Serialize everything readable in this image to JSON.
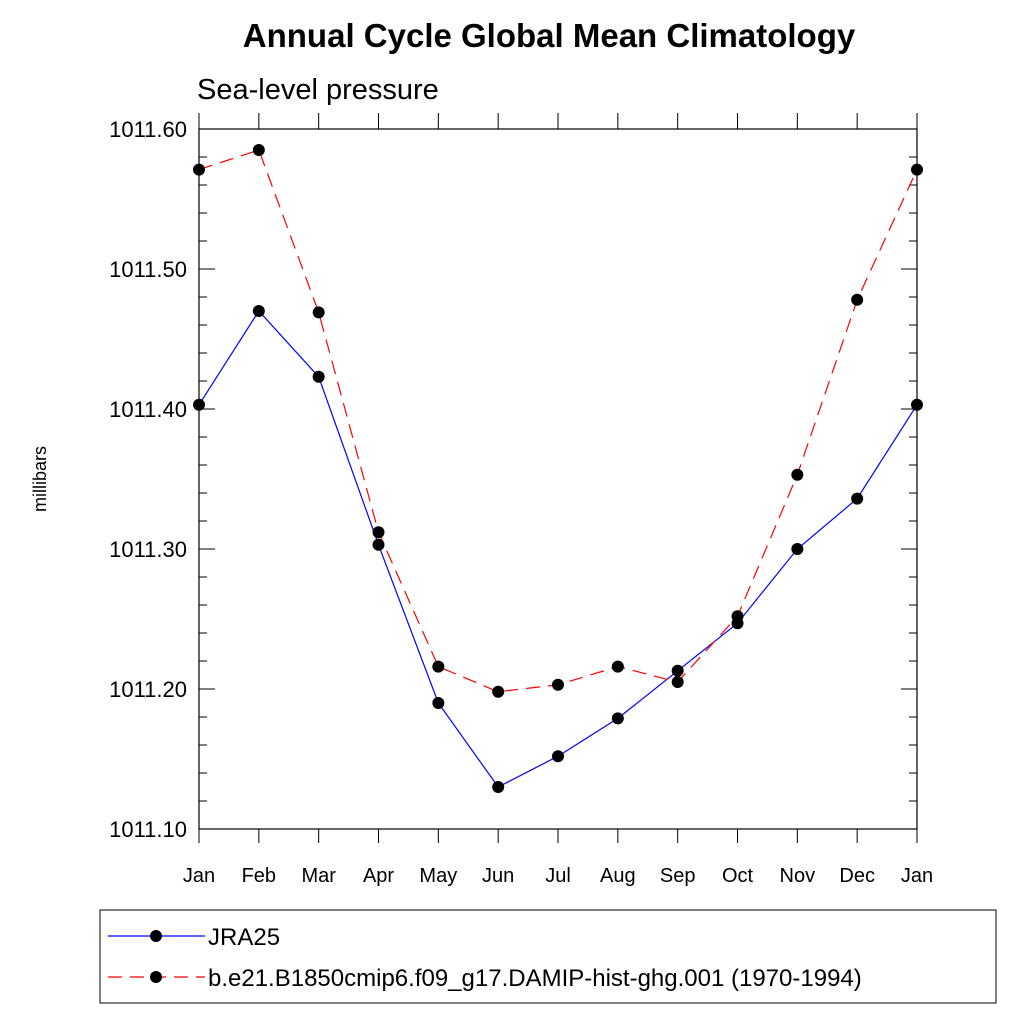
{
  "chart_data": {
    "type": "line",
    "title": "Annual Cycle Global Mean Climatology",
    "subtitle": "Sea-level pressure",
    "xlabel": "",
    "ylabel": "millibars",
    "categories": [
      "Jan",
      "Feb",
      "Mar",
      "Apr",
      "May",
      "Jun",
      "Jul",
      "Aug",
      "Sep",
      "Oct",
      "Nov",
      "Dec",
      "Jan"
    ],
    "ylim": [
      1011.1,
      1011.6
    ],
    "yticks": [
      1011.1,
      1011.2,
      1011.3,
      1011.4,
      1011.5,
      1011.6
    ],
    "ytick_labels": [
      "1011.10",
      "1011.20",
      "1011.30",
      "1011.40",
      "1011.50",
      "1011.60"
    ],
    "series": [
      {
        "name": "JRA25",
        "color": "#0000ff",
        "style": "solid",
        "values": [
          1011.403,
          1011.47,
          1011.423,
          1011.303,
          1011.19,
          1011.13,
          1011.152,
          1011.179,
          1011.213,
          1011.247,
          1011.3,
          1011.336,
          1011.403
        ]
      },
      {
        "name": "b.e21.B1850cmip6.f09_g17.DAMIP-hist-ghg.001 (1970-1994)",
        "color": "#ff0000",
        "style": "dashed",
        "values": [
          1011.571,
          1011.585,
          1011.469,
          1011.312,
          1011.216,
          1011.198,
          1011.203,
          1011.216,
          1011.205,
          1011.252,
          1011.353,
          1011.478,
          1011.571
        ]
      }
    ],
    "marker_color": "#000000",
    "legend_position": "bottom"
  }
}
